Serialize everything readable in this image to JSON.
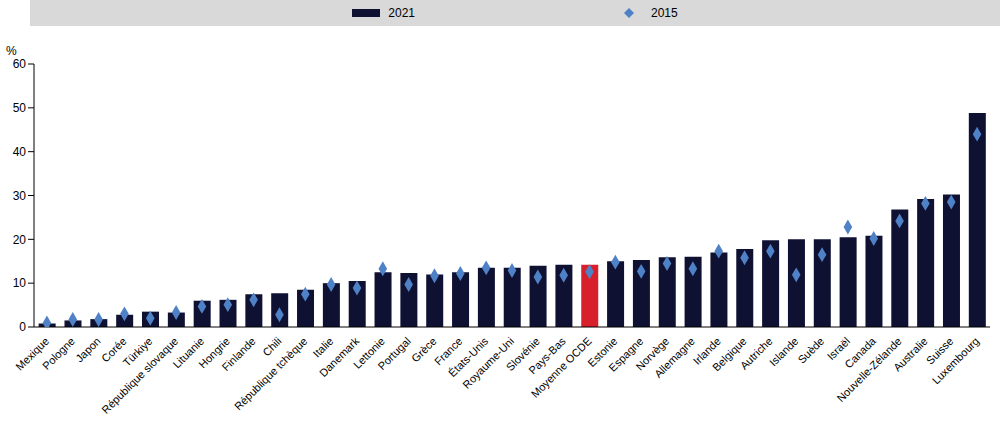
{
  "chart_data": {
    "type": "bar",
    "y_label": "%",
    "legend": "top",
    "grid": false,
    "ylim": [
      0,
      60
    ],
    "yticks": [
      0,
      10,
      20,
      30,
      40,
      50,
      60
    ],
    "categories": [
      "Mexique",
      "Pologne",
      "Japon",
      "Corée",
      "Türkiye",
      "République slovaque",
      "Lituanie",
      "Hongrie",
      "Finlande",
      "Chili",
      "République tchèque",
      "Italie",
      "Danemark",
      "Lettonie",
      "Portugal",
      "Grèce",
      "France",
      "États-Unis",
      "Royaume-Uni",
      "Slovénie",
      "Pays-Bas",
      "Moyenne OCDE",
      "Estonie",
      "Espagne",
      "Norvège",
      "Allemagne",
      "Irlande",
      "Belgique",
      "Autriche",
      "Islande",
      "Suède",
      "Israël",
      "Canada",
      "Nouvelle-Zélande",
      "Australie",
      "Suisse",
      "Luxembourg"
    ],
    "series": [
      {
        "name": "2021",
        "type": "bar",
        "color": "#0f1133",
        "colors": [
          "#0f1133",
          "#0f1133",
          "#0f1133",
          "#0f1133",
          "#0f1133",
          "#0f1133",
          "#0f1133",
          "#0f1133",
          "#0f1133",
          "#0f1133",
          "#0f1133",
          "#0f1133",
          "#0f1133",
          "#0f1133",
          "#0f1133",
          "#0f1133",
          "#0f1133",
          "#0f1133",
          "#0f1133",
          "#0f1133",
          "#0f1133",
          "#d7202b",
          "#0f1133",
          "#0f1133",
          "#0f1133",
          "#0f1133",
          "#0f1133",
          "#0f1133",
          "#0f1133",
          "#0f1133",
          "#0f1133",
          "#0f1133",
          "#0f1133",
          "#0f1133",
          "#0f1133",
          "#0f1133",
          "#0f1133"
        ],
        "values": [
          0.8,
          1.5,
          1.8,
          2.8,
          3.5,
          3.3,
          6.0,
          6.2,
          7.5,
          7.7,
          8.5,
          10.0,
          10.5,
          12.5,
          12.3,
          12.0,
          12.5,
          13.5,
          13.5,
          14.0,
          14.2,
          14.2,
          15.0,
          15.3,
          15.9,
          16.0,
          17.0,
          17.8,
          19.8,
          20.0,
          20.0,
          20.5,
          20.8,
          26.8,
          29.2,
          30.2,
          48.8
        ]
      },
      {
        "name": "2015",
        "type": "scatter",
        "marker": "diamond",
        "color": "#4f81c7",
        "values": [
          0.9,
          1.7,
          1.7,
          3.0,
          2.0,
          3.3,
          4.7,
          5.1,
          6.2,
          2.8,
          7.5,
          9.7,
          8.9,
          13.3,
          9.7,
          11.7,
          12.2,
          13.5,
          12.9,
          11.4,
          11.8,
          12.6,
          14.8,
          12.7,
          14.5,
          13.3,
          17.3,
          15.8,
          17.3,
          11.9,
          16.5,
          22.8,
          20.2,
          24.2,
          28.2,
          28.5,
          44.0
        ]
      }
    ]
  }
}
